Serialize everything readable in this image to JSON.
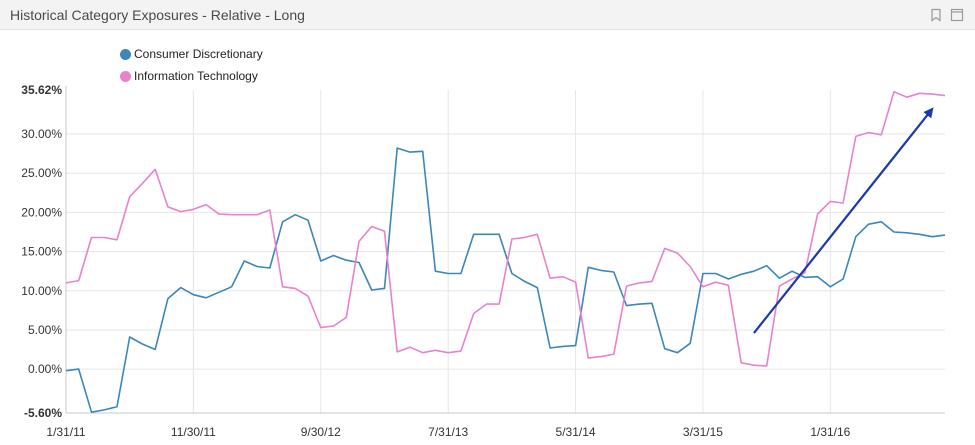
{
  "panel": {
    "title": "Historical Category Exposures - Relative - Long",
    "bookmark_icon": "bookmark-icon",
    "maximize_icon": "maximize-icon"
  },
  "chart_data": {
    "type": "line",
    "title": "",
    "xlabel": "",
    "ylabel": "",
    "x_tick_labels": [
      "1/31/11",
      "11/30/11",
      "9/30/12",
      "7/31/13",
      "5/31/14",
      "3/31/15",
      "1/31/16"
    ],
    "y_tick_labels": [
      "35.62%",
      "30.00%",
      "25.00%",
      "20.00%",
      "15.00%",
      "10.00%",
      "5.00%",
      "0.00%",
      "-5.60%"
    ],
    "ylim": [
      -5.6,
      35.62
    ],
    "grid": true,
    "legend_position": "top-left",
    "x": [
      "2011-01-31",
      "2011-02-28",
      "2011-03-31",
      "2011-04-30",
      "2011-05-31",
      "2011-06-30",
      "2011-07-31",
      "2011-08-31",
      "2011-09-30",
      "2011-10-31",
      "2011-11-30",
      "2011-12-31",
      "2012-01-31",
      "2012-02-29",
      "2012-03-31",
      "2012-04-30",
      "2012-05-31",
      "2012-06-30",
      "2012-07-31",
      "2012-08-31",
      "2012-09-30",
      "2012-10-31",
      "2012-11-30",
      "2012-12-31",
      "2013-01-31",
      "2013-02-28",
      "2013-03-31",
      "2013-04-30",
      "2013-05-31",
      "2013-06-30",
      "2013-07-31",
      "2013-08-31",
      "2013-09-30",
      "2013-10-31",
      "2013-11-30",
      "2013-12-31",
      "2014-01-31",
      "2014-02-28",
      "2014-03-31",
      "2014-04-30",
      "2014-05-31",
      "2014-06-30",
      "2014-07-31",
      "2014-08-31",
      "2014-09-30",
      "2014-10-31",
      "2014-11-30",
      "2014-12-31",
      "2015-01-31",
      "2015-02-28",
      "2015-03-31",
      "2015-04-30",
      "2015-05-31",
      "2015-06-30",
      "2015-07-31",
      "2015-08-31",
      "2015-09-30",
      "2015-10-31",
      "2015-11-30",
      "2015-12-31",
      "2016-01-31",
      "2016-02-29",
      "2016-03-31",
      "2016-04-30",
      "2016-05-31",
      "2016-06-30",
      "2016-07-31",
      "2016-08-31",
      "2016-09-30",
      "2016-10-31"
    ],
    "series": [
      {
        "name": "Consumer Discretionary",
        "color": "#3a87b8",
        "values": [
          -0.2,
          0.0,
          -5.5,
          -5.2,
          -4.8,
          4.1,
          3.2,
          2.5,
          9.0,
          10.4,
          9.5,
          9.1,
          9.8,
          10.5,
          13.8,
          13.1,
          12.9,
          18.8,
          19.7,
          19.0,
          13.8,
          14.5,
          13.9,
          13.6,
          10.1,
          10.3,
          28.2,
          27.7,
          27.8,
          12.5,
          12.2,
          12.2,
          17.2,
          17.2,
          17.2,
          12.2,
          11.2,
          10.4,
          2.7,
          2.9,
          3.0,
          13.0,
          12.6,
          12.4,
          8.1,
          8.3,
          8.4,
          2.6,
          2.1,
          3.3,
          12.2,
          12.2,
          11.5,
          12.1,
          12.5,
          13.2,
          11.6,
          12.5,
          11.7,
          11.8,
          10.5,
          11.5,
          16.9,
          18.5,
          18.8,
          17.5,
          17.4,
          17.2,
          16.9,
          17.1
        ]
      },
      {
        "name": "Information Technology",
        "color": "#e882cc",
        "values": [
          11.0,
          11.3,
          16.8,
          16.8,
          16.5,
          22.0,
          23.7,
          25.5,
          20.7,
          20.1,
          20.4,
          21.0,
          19.8,
          19.7,
          19.7,
          19.7,
          20.3,
          10.5,
          10.3,
          9.3,
          5.3,
          5.5,
          6.6,
          16.3,
          18.2,
          17.6,
          2.2,
          2.8,
          2.1,
          2.4,
          2.1,
          2.3,
          7.1,
          8.3,
          8.3,
          16.6,
          16.8,
          17.2,
          11.6,
          11.8,
          11.1,
          1.4,
          1.6,
          1.9,
          10.6,
          11.0,
          11.2,
          15.4,
          14.8,
          13.1,
          10.5,
          11.1,
          10.7,
          0.8,
          0.5,
          0.4,
          10.6,
          11.5,
          12.3,
          19.8,
          21.4,
          21.2,
          29.7,
          30.2,
          29.9,
          35.4,
          34.7,
          35.2,
          35.1,
          34.9
        ]
      }
    ],
    "annotations": [
      {
        "type": "arrow",
        "color": "#1a3aa8",
        "from": {
          "x": "2015-07-31",
          "y": 4.6
        },
        "to": {
          "x": "2016-09-30",
          "y": 33.2
        }
      }
    ]
  }
}
